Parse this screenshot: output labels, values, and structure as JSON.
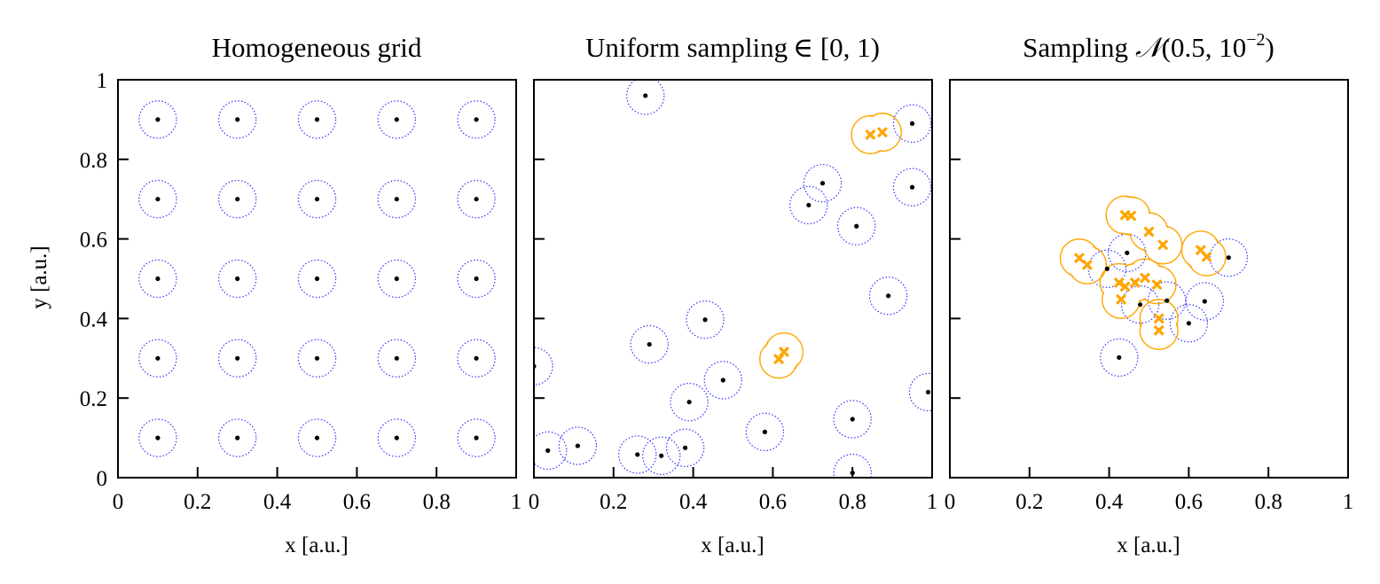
{
  "figure": {
    "x_label": "x [a.u.]",
    "y_label": "y [a.u.]",
    "tick_labels": [
      "0",
      "0.2",
      "0.4",
      "0.6",
      "0.8",
      "1"
    ],
    "colors": {
      "circle": "#3333ff",
      "overlap": "#ffa500",
      "point": "#000000",
      "axis": "#000000"
    }
  },
  "chart_data": [
    {
      "type": "scatter",
      "title": "Homogeneous grid",
      "xlabel": "x [a.u.]",
      "ylabel": "y [a.u.]",
      "xlim": [
        0,
        1
      ],
      "ylim": [
        0,
        1
      ],
      "radius": 0.047,
      "points": [
        [
          0.1,
          0.9
        ],
        [
          0.3,
          0.9
        ],
        [
          0.5,
          0.9
        ],
        [
          0.7,
          0.9
        ],
        [
          0.9,
          0.9
        ],
        [
          0.1,
          0.7
        ],
        [
          0.3,
          0.7
        ],
        [
          0.5,
          0.7
        ],
        [
          0.7,
          0.7
        ],
        [
          0.9,
          0.7
        ],
        [
          0.1,
          0.5
        ],
        [
          0.3,
          0.5
        ],
        [
          0.5,
          0.5
        ],
        [
          0.7,
          0.5
        ],
        [
          0.9,
          0.5
        ],
        [
          0.1,
          0.3
        ],
        [
          0.3,
          0.3
        ],
        [
          0.5,
          0.3
        ],
        [
          0.7,
          0.3
        ],
        [
          0.9,
          0.3
        ],
        [
          0.1,
          0.1
        ],
        [
          0.3,
          0.1
        ],
        [
          0.5,
          0.1
        ],
        [
          0.7,
          0.1
        ],
        [
          0.9,
          0.1
        ]
      ],
      "overlap_points": [],
      "overlap_clusters": []
    },
    {
      "type": "scatter",
      "title_prefix": "Uniform sampling",
      "title_math": "∈ [0, 1)",
      "xlabel": "x [a.u.]",
      "xlim": [
        0,
        1
      ],
      "ylim": [
        0,
        1
      ],
      "radius": 0.047,
      "points": [
        [
          0.28,
          0.96
        ],
        [
          0.95,
          0.89
        ],
        [
          0.725,
          0.74
        ],
        [
          0.69,
          0.685
        ],
        [
          0.95,
          0.73
        ],
        [
          0.81,
          0.632
        ],
        [
          0.89,
          0.457
        ],
        [
          0.43,
          0.397
        ],
        [
          0.29,
          0.335
        ],
        [
          0.475,
          0.245
        ],
        [
          0.0,
          0.28
        ],
        [
          0.39,
          0.19
        ],
        [
          0.58,
          0.115
        ],
        [
          0.8,
          0.147
        ],
        [
          0.99,
          0.215
        ],
        [
          0.035,
          0.068
        ],
        [
          0.11,
          0.08
        ],
        [
          0.26,
          0.058
        ],
        [
          0.32,
          0.055
        ],
        [
          0.38,
          0.075
        ],
        [
          0.8,
          0.012
        ]
      ],
      "overlap_points": [
        [
          0.845,
          0.862
        ],
        [
          0.875,
          0.868
        ],
        [
          0.615,
          0.298
        ],
        [
          0.628,
          0.316
        ]
      ],
      "overlap_clusters": [
        [
          [
            0.845,
            0.862
          ],
          [
            0.875,
            0.868
          ]
        ],
        [
          [
            0.615,
            0.298
          ],
          [
            0.628,
            0.316
          ]
        ]
      ]
    },
    {
      "type": "scatter",
      "title_prefix": "Sampling",
      "title_math": "(0.5, 10",
      "title_exp": "−2",
      "title_close": ")",
      "xlabel": "x [a.u.]",
      "xlim": [
        0,
        1
      ],
      "ylim": [
        0,
        1
      ],
      "radius": 0.047,
      "points": [
        [
          0.445,
          0.565
        ],
        [
          0.395,
          0.525
        ],
        [
          0.7,
          0.553
        ],
        [
          0.478,
          0.435
        ],
        [
          0.545,
          0.445
        ],
        [
          0.64,
          0.443
        ],
        [
          0.6,
          0.388
        ],
        [
          0.425,
          0.302
        ]
      ],
      "overlap_points": [
        [
          0.44,
          0.66
        ],
        [
          0.455,
          0.658
        ],
        [
          0.5,
          0.618
        ],
        [
          0.535,
          0.585
        ],
        [
          0.63,
          0.572
        ],
        [
          0.645,
          0.555
        ],
        [
          0.325,
          0.552
        ],
        [
          0.345,
          0.535
        ],
        [
          0.425,
          0.49
        ],
        [
          0.44,
          0.48
        ],
        [
          0.465,
          0.49
        ],
        [
          0.49,
          0.502
        ],
        [
          0.52,
          0.485
        ],
        [
          0.43,
          0.448
        ],
        [
          0.525,
          0.4
        ],
        [
          0.525,
          0.37
        ]
      ],
      "overlap_clusters": [
        [
          [
            0.44,
            0.66
          ],
          [
            0.455,
            0.658
          ],
          [
            0.5,
            0.618
          ],
          [
            0.535,
            0.585
          ]
        ],
        [
          [
            0.63,
            0.572
          ],
          [
            0.645,
            0.555
          ]
        ],
        [
          [
            0.325,
            0.552
          ],
          [
            0.345,
            0.535
          ]
        ],
        [
          [
            0.425,
            0.49
          ],
          [
            0.44,
            0.48
          ],
          [
            0.465,
            0.49
          ],
          [
            0.49,
            0.502
          ],
          [
            0.52,
            0.485
          ],
          [
            0.43,
            0.448
          ]
        ],
        [
          [
            0.525,
            0.4
          ],
          [
            0.525,
            0.37
          ]
        ]
      ]
    }
  ]
}
